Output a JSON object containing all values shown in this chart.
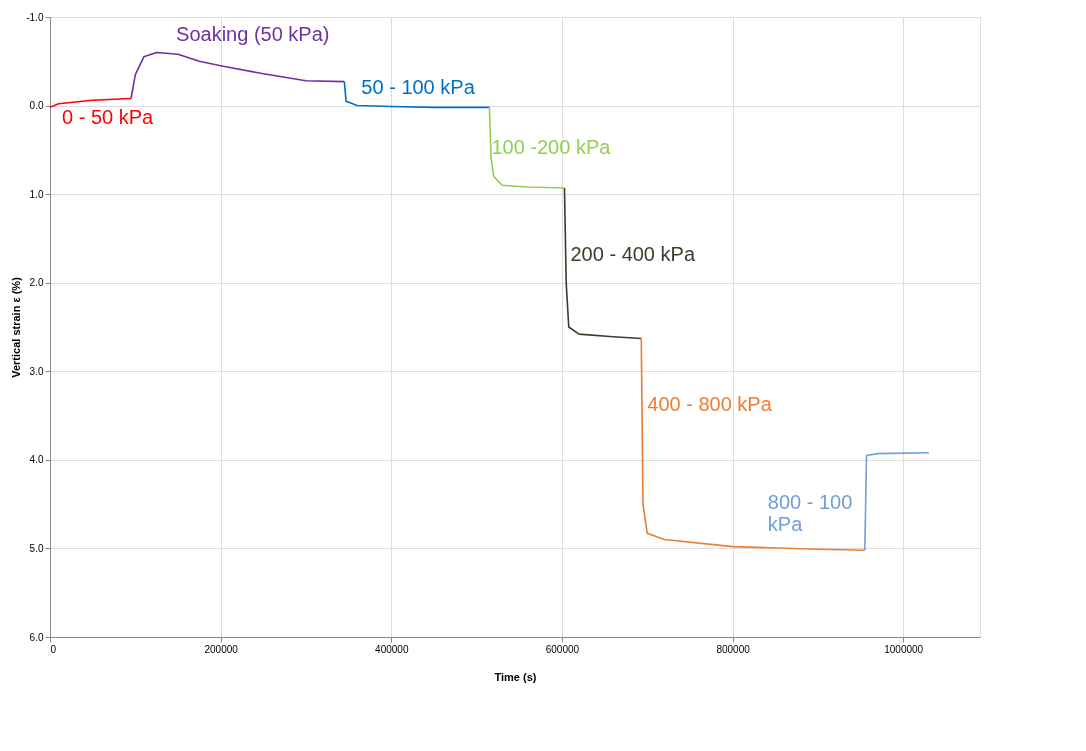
{
  "chart_data": {
    "type": "line",
    "xlabel": "Time (s)",
    "ylabel": "Vertical strain ε (%)",
    "xlim": [
      0,
      1090000
    ],
    "xticks": [
      0,
      200000,
      400000,
      600000,
      800000,
      1000000
    ],
    "ylim": [
      6.0,
      -1.0
    ],
    "yticks": [
      {
        "value": -1.0,
        "label": "-1.0"
      },
      {
        "value": 0.0,
        "label": "0.0"
      },
      {
        "value": 1.0,
        "label": "1.0"
      },
      {
        "value": 2.0,
        "label": "2.0"
      },
      {
        "value": 3.0,
        "label": "3.0"
      },
      {
        "value": 4.0,
        "label": "4.0"
      },
      {
        "value": 5.0,
        "label": "5.0"
      },
      {
        "value": 6.0,
        "label": "6.0"
      }
    ],
    "grid": true,
    "legend": false,
    "marker": "none",
    "line_style": "solid",
    "series": [
      {
        "name": "0 - 50 kPa",
        "color": "#ff0000",
        "x": [
          0,
          10000,
          50000,
          95000
        ],
        "values": [
          0.02,
          -0.02,
          -0.06,
          -0.08
        ]
      },
      {
        "name": "Soaking (50 kPa)",
        "color": "#7030a0",
        "x": [
          95000,
          100000,
          110000,
          125000,
          150000,
          175000,
          200000,
          250000,
          300000,
          345000
        ],
        "values": [
          -0.08,
          -0.35,
          -0.55,
          -0.6,
          -0.58,
          -0.5,
          -0.45,
          -0.36,
          -0.28,
          -0.27
        ]
      },
      {
        "name": "50 - 100 kPa",
        "color": "#0070c0",
        "x": [
          345000,
          347000,
          360000,
          400000,
          450000,
          515000
        ],
        "values": [
          -0.27,
          -0.05,
          0.0,
          0.01,
          0.02,
          0.02
        ]
      },
      {
        "name": "100 -200 kPa",
        "color": "#92d050",
        "x": [
          515000,
          517000,
          520000,
          530000,
          560000,
          603000
        ],
        "values": [
          0.02,
          0.6,
          0.8,
          0.9,
          0.92,
          0.93
        ]
      },
      {
        "name": "200 - 400 kPa",
        "color": "#403a29",
        "x": [
          603000,
          605000,
          608000,
          620000,
          660000,
          693000
        ],
        "values": [
          0.93,
          2.0,
          2.5,
          2.58,
          2.61,
          2.63
        ]
      },
      {
        "name": "400 - 800 kPa",
        "color": "#ed7d31",
        "x": [
          693000,
          695000,
          700000,
          720000,
          800000,
          900000,
          955000
        ],
        "values": [
          2.63,
          4.5,
          4.83,
          4.9,
          4.98,
          5.01,
          5.02
        ]
      },
      {
        "name": "800 - 100\nkPa",
        "color": "#6f9ed8",
        "x": [
          955000,
          957000,
          970000,
          1030000
        ],
        "values": [
          5.02,
          3.95,
          3.93,
          3.92
        ]
      }
    ]
  }
}
